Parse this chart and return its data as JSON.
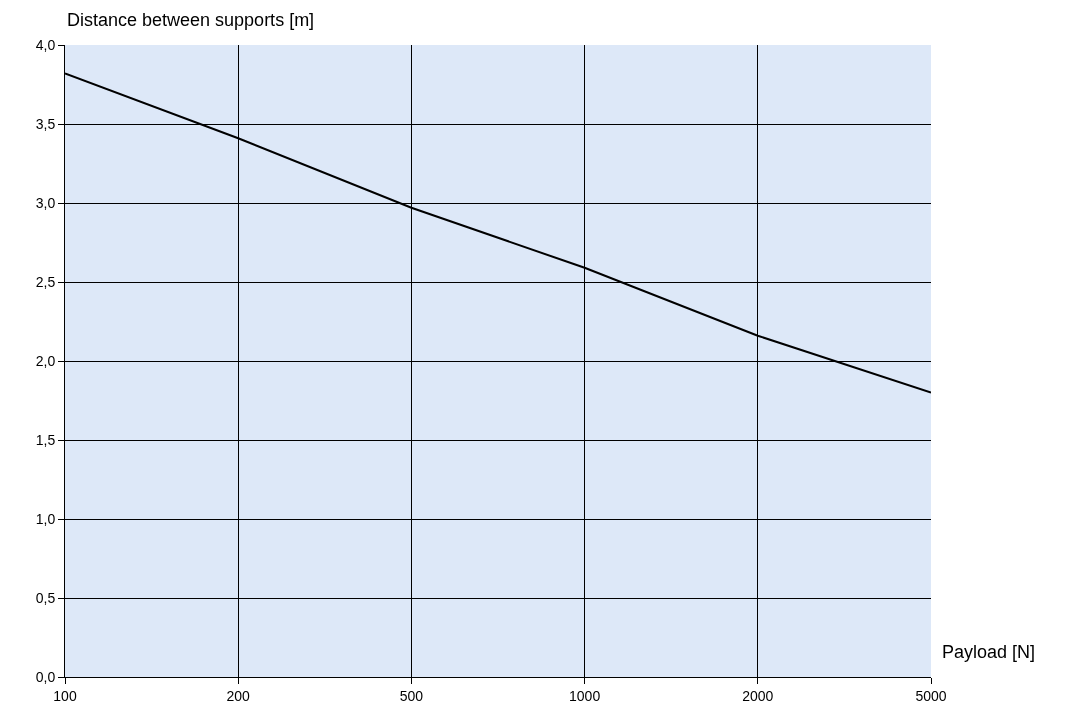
{
  "chart_data": {
    "type": "line",
    "ylabel": "Distance between supports [m]",
    "xlabel": "Payload [N]",
    "categories": [
      "100",
      "200",
      "500",
      "1000",
      "2000",
      "5000"
    ],
    "series": [
      {
        "color": "#000000",
        "values": [
          3.82,
          3.41,
          2.97,
          2.59,
          2.16,
          1.8
        ]
      }
    ],
    "ylim": [
      0,
      4
    ],
    "yticks": [
      {
        "value": 0,
        "label": "0,0"
      },
      {
        "value": 0.5,
        "label": "0,5"
      },
      {
        "value": 1,
        "label": "1,0"
      },
      {
        "value": 1.5,
        "label": "1,5"
      },
      {
        "value": 2,
        "label": "2,0"
      },
      {
        "value": 2.5,
        "label": "2,5"
      },
      {
        "value": 3,
        "label": "3,0"
      },
      {
        "value": 3.5,
        "label": "3,5"
      },
      {
        "value": 4,
        "label": "4,0"
      }
    ],
    "grid": true,
    "legend": false,
    "marker": "none",
    "line_style": "solid"
  }
}
